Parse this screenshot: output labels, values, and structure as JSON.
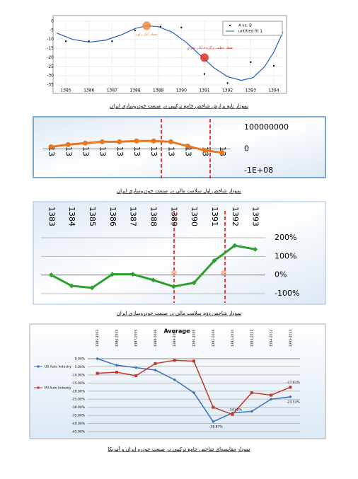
{
  "chart_data": [
    {
      "type": "scatter",
      "caption": "نمودار تابع برازش شاخص جامع ترکیبی در صنعت خودروسازی ایران",
      "xlim": [
        1384.6,
        1394.4
      ],
      "xticks": [
        1385,
        1386,
        1387,
        1388,
        1389,
        1390,
        1391,
        1392,
        1393,
        1394
      ],
      "ylim": [
        -35,
        0
      ],
      "yticks": [
        0,
        -5,
        -10,
        -15,
        -20,
        -25,
        -30,
        -35
      ],
      "grid": true,
      "legend": "upper right",
      "series": [
        {
          "name": "A vs. B",
          "color": "#000000",
          "x": [
            1385,
            1386,
            1387,
            1388,
            1389.1,
            1390,
            1391,
            1392,
            1393,
            1394
          ],
          "values": [
            -11,
            -11,
            -11,
            -5,
            -3,
            -3.5,
            -29,
            -34,
            -22.5,
            -24.5
          ]
        },
        {
          "name": "untitled fit 1",
          "type": "line",
          "color": "#1f5fbf",
          "x": [
            1384.6,
            1385.3,
            1386,
            1386.7,
            1387.4,
            1388,
            1388.5,
            1389,
            1389.6,
            1390.2,
            1390.8,
            1391.4,
            1392,
            1392.6,
            1393.1,
            1393.6,
            1394,
            1394.4
          ],
          "values": [
            -6.5,
            -10,
            -11.5,
            -10.5,
            -7.5,
            -4,
            -2.5,
            -3,
            -6,
            -11.5,
            -18.5,
            -25.5,
            -30.5,
            -32.5,
            -31,
            -25,
            -17,
            -6
          ]
        }
      ],
      "annotations": [
        {
          "text": "نقطه آغاز رکود",
          "x": 1388.5,
          "y": -2.5,
          "color": "#f0883a"
        },
        {
          "text": "نقطه عطف برگزیده آغاز بحران",
          "x": 1391,
          "y": -20,
          "color": "#e0302a"
        }
      ]
    },
    {
      "type": "line",
      "caption": "نمودار شاخص اول سلامت مالی در صنعت خودروسازی ایران",
      "categories": [
        "13",
        "13",
        "13",
        "13",
        "13",
        "13",
        "13",
        "13",
        "13",
        "13",
        "13"
      ],
      "values": [
        10000000,
        20000000,
        27000000,
        33000000,
        33000000,
        37000000,
        37000000,
        33000000,
        13000000,
        -7000000,
        -17000000
      ],
      "color": "#e87722",
      "ylim": [
        -100000000,
        100000000
      ],
      "yticks": [
        100000000,
        0,
        {
          "value": -100000000,
          "label": "-1E+08"
        }
      ]
    },
    {
      "type": "line",
      "caption": "نمودار شاخص دوم سلامت مالی در صنعت خودروسازی ایران",
      "categories": [
        "1383",
        "1384",
        "1385",
        "1386",
        "1387",
        "1388",
        "1389",
        "1390",
        "1391",
        "1392",
        "1393"
      ],
      "values": [
        0,
        -58,
        -69,
        4,
        4,
        -27,
        -62,
        -42,
        77,
        158,
        138
      ],
      "color": "#2ca02c",
      "ylim": [
        -100,
        200
      ],
      "yticks": [
        {
          "value": 200,
          "label": "200%"
        },
        {
          "value": 100,
          "label": "100%"
        },
        {
          "value": 0,
          "label": "0%"
        },
        {
          "value": -100,
          "label": "-100%"
        }
      ],
      "grid": true
    },
    {
      "type": "line",
      "title": "Average",
      "caption": "نمودار مقایسه‌ای شاخص جامع ترکیبی در صنعت خودرو ایران و آمریکا",
      "categories": [
        "1385-2003",
        "1386-2004",
        "1387-2005",
        "1388-2006",
        "1389-2007",
        "1390-2008",
        "1391-2009",
        "1392-2010",
        "1393-2011",
        "1394-2012",
        "1395-2013"
      ],
      "series": [
        {
          "name": "US Auto Industry",
          "color": "#3a6fc4",
          "values": [
            0,
            -4,
            -5.5,
            -7,
            -13,
            -21,
            -38.87,
            -33.5,
            -32.5,
            -25,
            -23.53
          ],
          "value_labels": [
            null,
            null,
            null,
            null,
            null,
            null,
            "-38.87%",
            null,
            null,
            null,
            "-23.53%"
          ]
        },
        {
          "name": "IRI Auto Industry",
          "color": "#c0392b",
          "values": [
            -9,
            -8.3,
            -10.5,
            -3,
            -1,
            -1.5,
            -30,
            -34.42,
            -21,
            -22.5,
            -17.61
          ],
          "value_labels": [
            null,
            null,
            null,
            null,
            null,
            null,
            null,
            "-34.42%",
            null,
            null,
            "-17.61%"
          ]
        }
      ],
      "ylim": [
        -45,
        0
      ],
      "yticks": [
        {
          "value": 0,
          "label": "0.00%"
        },
        {
          "value": -5,
          "label": "-5.00%"
        },
        {
          "value": -10,
          "label": "-10.00%"
        },
        {
          "value": -15,
          "label": "-15.00%"
        },
        {
          "value": -20,
          "label": "-20.00%"
        },
        {
          "value": -25,
          "label": "-25.00%"
        },
        {
          "value": -30,
          "label": "-30.00%"
        },
        {
          "value": -35,
          "label": "-35.00%"
        },
        {
          "value": -40,
          "label": "-40.00%"
        },
        {
          "value": -45,
          "label": "-45.00%"
        }
      ],
      "grid": true,
      "legend": "left"
    }
  ]
}
